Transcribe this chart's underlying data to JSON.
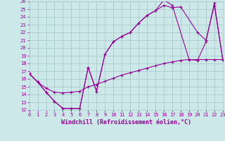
{
  "bg_color": "#cce8e8",
  "line_color": "#990099",
  "grid_color": "#aacccc",
  "xlim": [
    0,
    23
  ],
  "ylim": [
    12,
    26
  ],
  "xticks": [
    0,
    1,
    2,
    3,
    4,
    5,
    6,
    7,
    8,
    9,
    10,
    11,
    12,
    13,
    14,
    15,
    16,
    17,
    18,
    19,
    20,
    21,
    22,
    23
  ],
  "yticks": [
    12,
    13,
    14,
    15,
    16,
    17,
    18,
    19,
    20,
    21,
    22,
    23,
    24,
    25,
    26
  ],
  "xlabel": "Windchill (Refroidissement éolien,°C)",
  "tick_fontsize": 5.0,
  "label_fontsize": 6.0,
  "line1_x": [
    0,
    1,
    2,
    3,
    4,
    5,
    6,
    7,
    8,
    9,
    10,
    11,
    12,
    13,
    14,
    15,
    16,
    17,
    19,
    20,
    21,
    22,
    23
  ],
  "line1_y": [
    16.7,
    15.6,
    14.3,
    13.1,
    12.2,
    12.2,
    12.2,
    17.5,
    14.4,
    19.2,
    20.8,
    21.5,
    22.0,
    23.2,
    24.2,
    24.8,
    26.2,
    25.5,
    18.5,
    18.4,
    20.8,
    25.8,
    18.5
  ],
  "line2_x": [
    0,
    1,
    2,
    3,
    4,
    5,
    6,
    7,
    8,
    9,
    10,
    11,
    12,
    13,
    14,
    15,
    16,
    17,
    18,
    20,
    21,
    22,
    23
  ],
  "line2_y": [
    16.7,
    15.6,
    14.3,
    13.1,
    12.2,
    12.2,
    12.2,
    17.5,
    14.4,
    19.2,
    20.8,
    21.5,
    22.0,
    23.2,
    24.2,
    24.8,
    25.5,
    25.2,
    25.3,
    22.0,
    21.0,
    25.5,
    18.5
  ],
  "line3_x": [
    0,
    1,
    2,
    3,
    4,
    5,
    6,
    7,
    8,
    9,
    10,
    11,
    12,
    13,
    14,
    15,
    16,
    17,
    18,
    19,
    20,
    21,
    22,
    23
  ],
  "line3_y": [
    16.7,
    15.6,
    14.8,
    14.3,
    14.2,
    14.3,
    14.4,
    15.0,
    15.3,
    15.7,
    16.1,
    16.5,
    16.8,
    17.1,
    17.4,
    17.7,
    18.0,
    18.2,
    18.4,
    18.5,
    18.5,
    18.5,
    18.5,
    18.5
  ]
}
